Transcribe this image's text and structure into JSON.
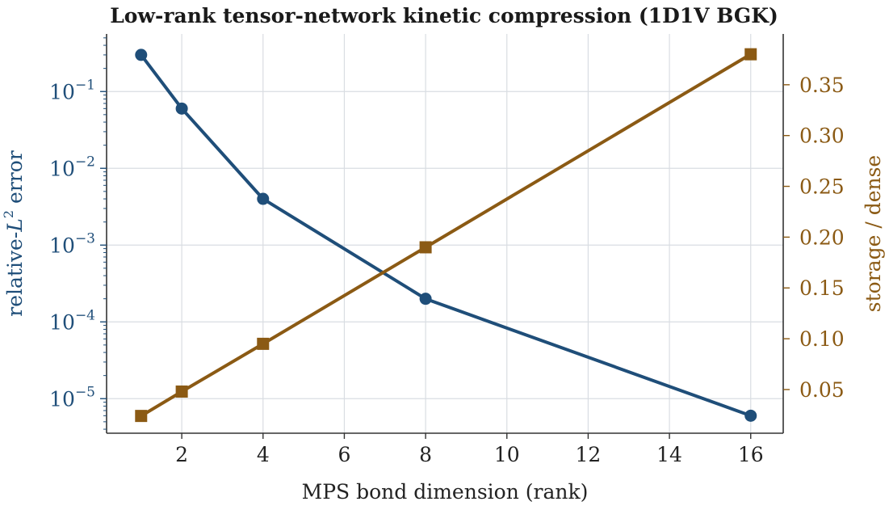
{
  "chart_data": {
    "type": "line",
    "title": "Low-rank tensor-network kinetic compression (1D1V BGK)",
    "xlabel": "MPS bond dimension (rank)",
    "ylabel_left": {
      "prefix": "relative-",
      "symbol": "L",
      "sup": "2",
      "suffix": " error"
    },
    "ylabel_right": "storage / dense",
    "xlim": [
      0.15,
      16.8
    ],
    "xticks": [
      2,
      4,
      6,
      8,
      10,
      12,
      14,
      16
    ],
    "ylim_left_log10": [
      -5.45,
      -0.25
    ],
    "yticks_left": [
      {
        "base": "10",
        "exp": "−1",
        "log": -1
      },
      {
        "base": "10",
        "exp": "−2",
        "log": -2
      },
      {
        "base": "10",
        "exp": "−3",
        "log": -3
      },
      {
        "base": "10",
        "exp": "−4",
        "log": -4
      },
      {
        "base": "10",
        "exp": "−5",
        "log": -5
      }
    ],
    "ylim_right": [
      0.007,
      0.4
    ],
    "yticks_right": [
      0.05,
      0.1,
      0.15,
      0.2,
      0.25,
      0.3,
      0.35
    ],
    "ytick_right_labels": [
      "0.05",
      "0.10",
      "0.15",
      "0.20",
      "0.25",
      "0.30",
      "0.35"
    ],
    "grid": true,
    "series": [
      {
        "x": [
          1,
          2,
          4,
          8,
          16
        ],
        "values": [
          0.3,
          0.06,
          0.004,
          0.0002,
          6e-06
        ],
        "axis": "left",
        "color": "#1f4e79",
        "marker": "circle"
      },
      {
        "x": [
          1,
          2,
          4,
          8,
          16
        ],
        "values": [
          0.024,
          0.048,
          0.095,
          0.19,
          0.38
        ],
        "axis": "right",
        "color": "#8b5a14",
        "marker": "square"
      }
    ],
    "colors": {
      "left_axis": "#1f4e79",
      "right_axis": "#8b5a14",
      "spine": "#333333"
    }
  }
}
